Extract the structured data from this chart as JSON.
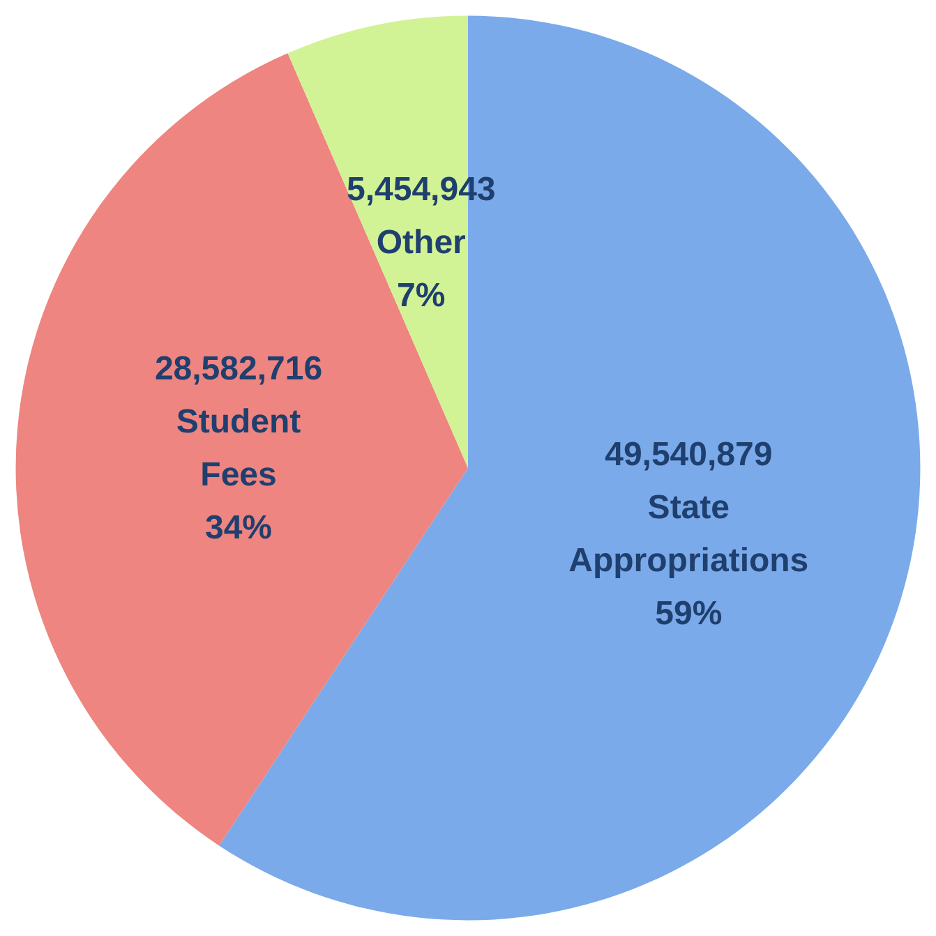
{
  "chart_data": {
    "type": "pie",
    "categories": [
      "State Appropriations",
      "Student Fees",
      "Other"
    ],
    "values": [
      49540879,
      28582716,
      5454943
    ],
    "colors": [
      "#7aaaea",
      "#ee8580",
      "#d2f296"
    ],
    "value_labels": [
      "49,540,879",
      "28,582,716",
      "5,454,943"
    ],
    "annotations": [
      "59%",
      "34%",
      "7%"
    ],
    "legend": false
  }
}
